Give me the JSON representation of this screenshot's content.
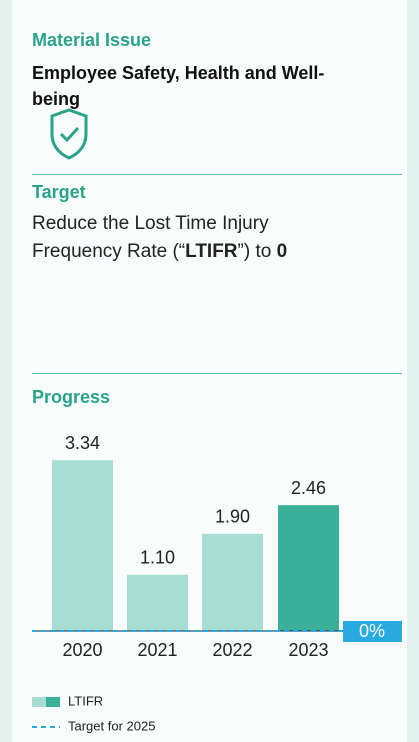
{
  "header": {
    "label": "Material Issue",
    "title": "Employee Safety, Health and Well-being"
  },
  "target": {
    "label": "Target",
    "text": [
      "Reduce the Lost Time Injury Frequency Rate (“",
      "LTIFR",
      "”) to ",
      "0"
    ]
  },
  "progress": {
    "label": "Progress"
  },
  "chart_data": {
    "type": "bar",
    "categories": [
      "2020",
      "2021",
      "2022",
      "2023"
    ],
    "series": [
      {
        "name": "LTIFR",
        "values": [
          3.34,
          1.1,
          1.9,
          2.46
        ],
        "value_labels": [
          "3.34",
          "1.10",
          "1.90",
          "2.46"
        ],
        "colors": [
          "#a8ddd4",
          "#a8ddd4",
          "#a8ddd4",
          "#3aaf9a"
        ]
      }
    ],
    "ylim": [
      0,
      3.5
    ],
    "target": {
      "name": "Target for 2025",
      "value": 0,
      "label": "0%",
      "color": "#29abe2"
    }
  }
}
